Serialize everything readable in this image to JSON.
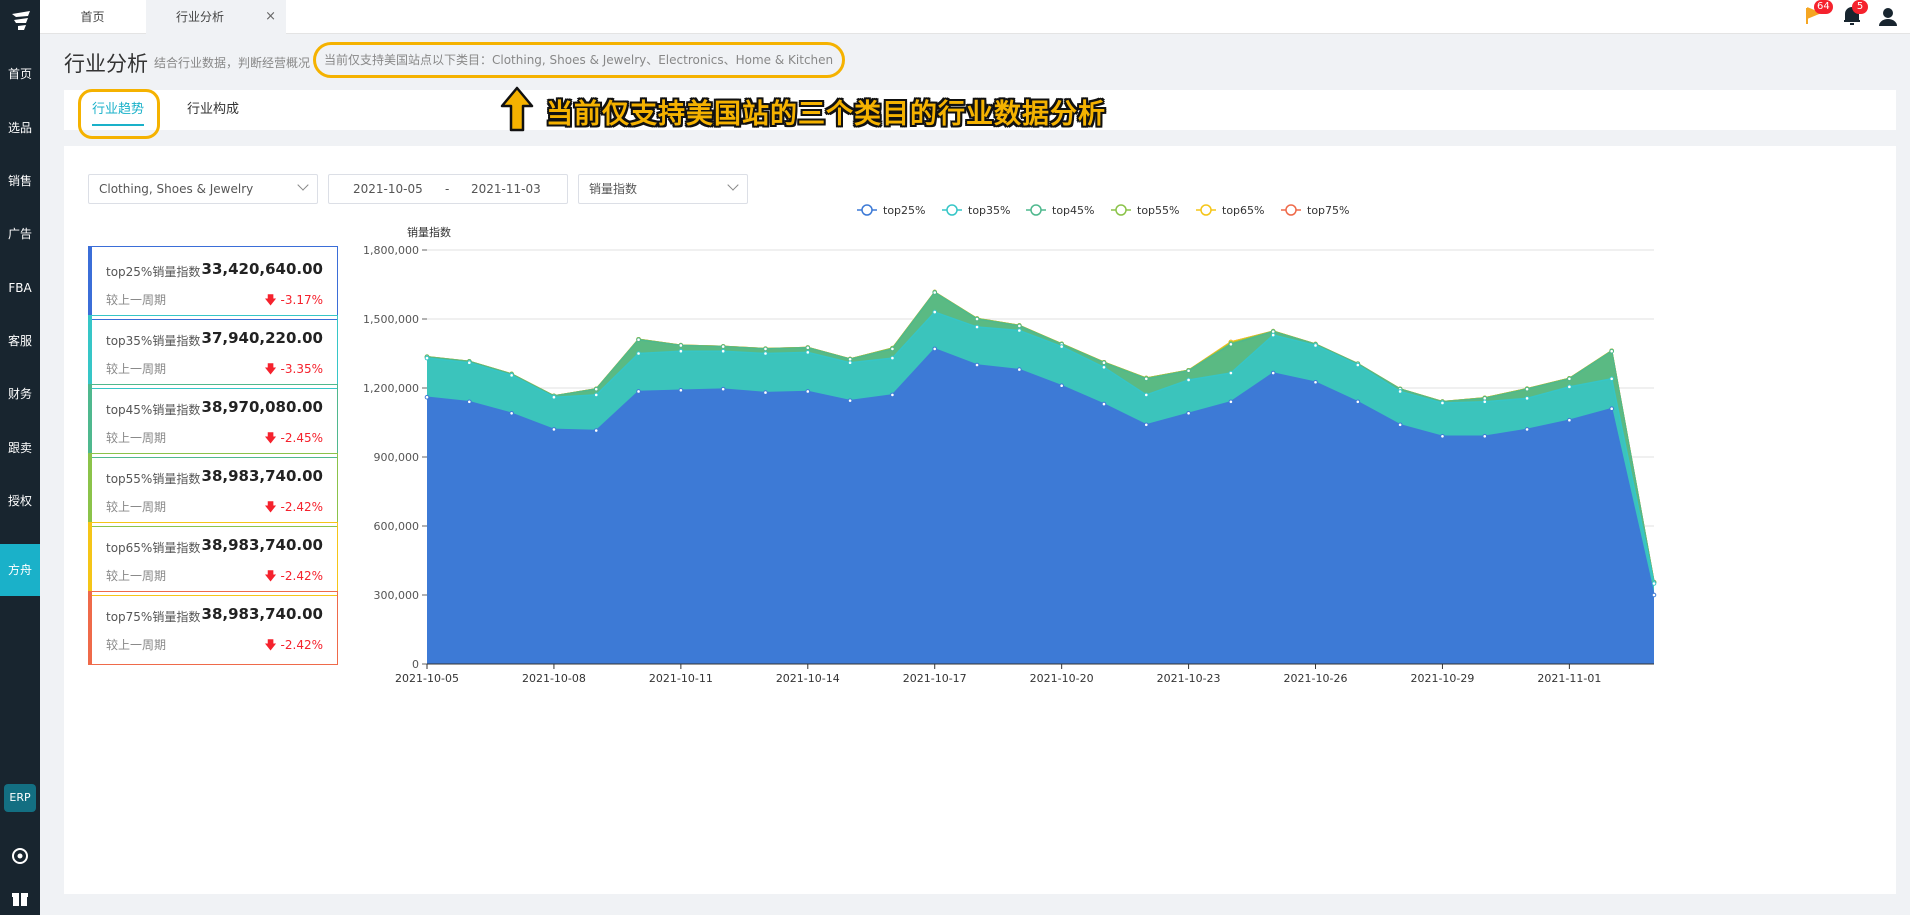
{
  "sidebar": {
    "items": [
      {
        "label": "首页"
      },
      {
        "label": "选品"
      },
      {
        "label": "销售"
      },
      {
        "label": "广告"
      },
      {
        "label": "FBA"
      },
      {
        "label": "客服"
      },
      {
        "label": "财务"
      },
      {
        "label": "跟卖"
      },
      {
        "label": "授权"
      },
      {
        "label": "方舟"
      }
    ],
    "erp_label": "ERP"
  },
  "topbar": {
    "home_tab": "首页",
    "current_tab": "行业分析",
    "close_glyph": "×",
    "flag_badge": "64",
    "bell_badge": "5"
  },
  "header": {
    "title": "行业分析",
    "subtitle": "结合行业数据，判断经营概况",
    "notice": "当前仅支持美国站点以下类目：Clothing, Shoes & Jewelry、Electronics、Home & Kitchen"
  },
  "tabs": [
    {
      "label": "行业趋势",
      "active": true
    },
    {
      "label": "行业构成",
      "active": false
    }
  ],
  "annotation": {
    "text": "当前仅支持美国站的三个类目的行业数据分析",
    "color": "#f5b200"
  },
  "filters": {
    "category": "Clothing, Shoes & Jewelry",
    "date_start": "2021-10-05",
    "date_sep": "-",
    "date_end": "2021-11-03",
    "metric": "销量指数"
  },
  "cards": [
    {
      "label": "top25%销量指数",
      "value": "33,420,640.00",
      "compare": "较上一周期",
      "change": "-3.17%",
      "color": "#3b6ed8"
    },
    {
      "label": "top35%销量指数",
      "value": "37,940,220.00",
      "compare": "较上一周期",
      "change": "-3.35%",
      "color": "#36c6c7"
    },
    {
      "label": "top45%销量指数",
      "value": "38,970,080.00",
      "compare": "较上一周期",
      "change": "-2.45%",
      "color": "#4fb88e"
    },
    {
      "label": "top55%销量指数",
      "value": "38,983,740.00",
      "compare": "较上一周期",
      "change": "-2.42%",
      "color": "#8bc34a"
    },
    {
      "label": "top65%销量指数",
      "value": "38,983,740.00",
      "compare": "较上一周期",
      "change": "-2.42%",
      "color": "#f5c518"
    },
    {
      "label": "top75%销量指数",
      "value": "38,983,740.00",
      "compare": "较上一周期",
      "change": "-2.42%",
      "color": "#ef6a4a"
    }
  ],
  "chart_data": {
    "type": "area",
    "ylabel": "销量指数",
    "ylim": [
      0,
      1800000
    ],
    "yticks": [
      "0",
      "300,000",
      "600,000",
      "900,000",
      "1,200,000",
      "1,500,000",
      "1,800,000"
    ],
    "ytick_values": [
      0,
      300000,
      600000,
      900000,
      1200000,
      1500000,
      1800000
    ],
    "grid": true,
    "legend_position": "top-center",
    "x": [
      "2021-10-05",
      "2021-10-06",
      "2021-10-07",
      "2021-10-08",
      "2021-10-09",
      "2021-10-10",
      "2021-10-11",
      "2021-10-12",
      "2021-10-13",
      "2021-10-14",
      "2021-10-15",
      "2021-10-16",
      "2021-10-17",
      "2021-10-18",
      "2021-10-19",
      "2021-10-20",
      "2021-10-21",
      "2021-10-22",
      "2021-10-23",
      "2021-10-24",
      "2021-10-25",
      "2021-10-26",
      "2021-10-27",
      "2021-10-28",
      "2021-10-29",
      "2021-10-30",
      "2021-10-31",
      "2021-11-01",
      "2021-11-02",
      "2021-11-03"
    ],
    "xtick_labels": [
      "2021-10-05",
      "2021-10-08",
      "2021-10-11",
      "2021-10-14",
      "2021-10-17",
      "2021-10-20",
      "2021-10-23",
      "2021-10-26",
      "2021-10-29",
      "2021-11-01"
    ],
    "series": [
      {
        "name": "top25%",
        "color": "#3d7ad6",
        "values": [
          1160000,
          1140000,
          1090000,
          1020000,
          1015000,
          1185000,
          1190000,
          1195000,
          1180000,
          1185000,
          1145000,
          1170000,
          1370000,
          1300000,
          1280000,
          1210000,
          1130000,
          1040000,
          1090000,
          1140000,
          1265000,
          1225000,
          1140000,
          1040000,
          990000,
          990000,
          1020000,
          1060000,
          1110000,
          300000
        ]
      },
      {
        "name": "top35%",
        "color": "#36c6c7",
        "values": [
          1330000,
          1310000,
          1255000,
          1160000,
          1170000,
          1350000,
          1360000,
          1360000,
          1350000,
          1355000,
          1310000,
          1330000,
          1530000,
          1465000,
          1450000,
          1380000,
          1290000,
          1170000,
          1235000,
          1265000,
          1430000,
          1385000,
          1300000,
          1185000,
          1135000,
          1140000,
          1155000,
          1205000,
          1240000,
          350000
        ]
      },
      {
        "name": "top45%",
        "color": "#4fb88e",
        "values": [
          1335000,
          1315000,
          1260000,
          1165000,
          1195000,
          1410000,
          1385000,
          1380000,
          1370000,
          1375000,
          1325000,
          1370000,
          1615000,
          1500000,
          1470000,
          1390000,
          1310000,
          1240000,
          1275000,
          1390000,
          1445000,
          1390000,
          1305000,
          1195000,
          1140000,
          1155000,
          1195000,
          1240000,
          1360000,
          355000
        ]
      },
      {
        "name": "top55%",
        "color": "#8bc34a",
        "values": [
          1336000,
          1316000,
          1261000,
          1166000,
          1196000,
          1412000,
          1386000,
          1381000,
          1371000,
          1376000,
          1326000,
          1373000,
          1617000,
          1502000,
          1472000,
          1392000,
          1312000,
          1243000,
          1277000,
          1395000,
          1447000,
          1391000,
          1306000,
          1196000,
          1141000,
          1157000,
          1197000,
          1242000,
          1362000,
          356000
        ]
      },
      {
        "name": "top65%",
        "color": "#f5c518",
        "values": [
          1336000,
          1316000,
          1261000,
          1166000,
          1196000,
          1412000,
          1386000,
          1381000,
          1371000,
          1376000,
          1326000,
          1373000,
          1617000,
          1502000,
          1472000,
          1392000,
          1312000,
          1243000,
          1277000,
          1400000,
          1447000,
          1391000,
          1306000,
          1196000,
          1141000,
          1157000,
          1197000,
          1242000,
          1362000,
          356000
        ]
      },
      {
        "name": "top75%",
        "color": "#ef6a4a",
        "values": [
          1336000,
          1316000,
          1261000,
          1166000,
          1196000,
          1412000,
          1386000,
          1381000,
          1371000,
          1376000,
          1326000,
          1373000,
          1617000,
          1502000,
          1472000,
          1392000,
          1312000,
          1243000,
          1277000,
          1400000,
          1447000,
          1391000,
          1306000,
          1196000,
          1141000,
          1157000,
          1197000,
          1242000,
          1362000,
          356000
        ]
      }
    ]
  }
}
